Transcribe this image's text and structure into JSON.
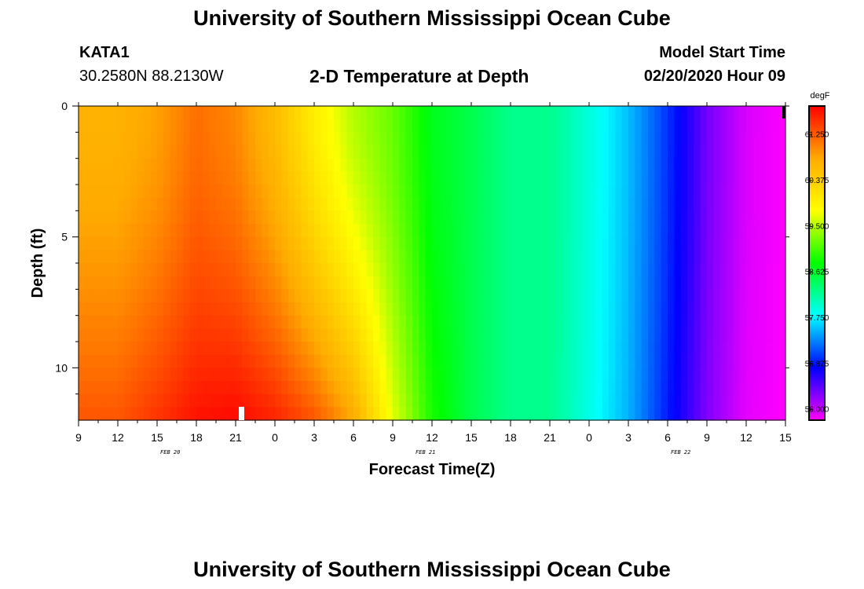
{
  "page": {
    "title_top": "University of Southern Mississippi Ocean Cube",
    "title_bottom": "University of Southern Mississippi Ocean Cube",
    "station_id": "KATA1",
    "station_coords": "30.2580N 88.2130W",
    "plot_title": "2-D Temperature at Depth",
    "model_start_label": "Model Start Time",
    "model_start_value": "02/20/2020 Hour 09"
  },
  "chart_data": {
    "type": "heatmap",
    "title": "2-D Temperature at Depth",
    "xlabel": "Forecast Time(Z)",
    "ylabel": "Depth (ft)",
    "x_tick_labels": [
      "9",
      "12",
      "15",
      "18",
      "21",
      "0",
      "3",
      "6",
      "9",
      "12",
      "15",
      "18",
      "21",
      "0",
      "3",
      "6",
      "9",
      "12",
      "15"
    ],
    "x_hour_range": [
      0,
      54
    ],
    "x_tick_step_hours": 3,
    "date_labels": [
      {
        "label": "FEB 20",
        "hour": 7
      },
      {
        "label": "FEB 21",
        "hour": 26.5
      },
      {
        "label": "FEB 22",
        "hour": 46
      }
    ],
    "y_tick_labels": [
      "0",
      "5",
      "10"
    ],
    "y_tick_values": [
      0,
      5,
      10
    ],
    "ylim": [
      0,
      12
    ],
    "y_inverted": true,
    "colorbar": {
      "unit": "degF",
      "tick_labels": [
        "61.250",
        "60.375",
        "59.500",
        "58.625",
        "57.750",
        "56.875",
        "56.000"
      ],
      "tick_values": [
        61.25,
        60.375,
        59.5,
        58.625,
        57.75,
        56.875,
        56.0
      ],
      "range": [
        55.8,
        61.8
      ],
      "colors": [
        "#ff00ff",
        "#0000ff",
        "#00ffff",
        "#00ff00",
        "#ffff00",
        "#ffaa00",
        "#ff0000"
      ]
    },
    "surface_temperature_by_hour": {
      "hours": [
        0,
        3,
        6,
        9,
        12,
        15,
        18,
        21,
        24,
        27,
        30,
        33,
        36,
        39,
        42,
        45,
        48,
        51,
        54
      ],
      "values_degF": [
        60.7,
        60.7,
        60.85,
        61.15,
        61.0,
        60.6,
        60.0,
        59.5,
        59.2,
        58.7,
        58.5,
        58.25,
        58.25,
        57.95,
        57.55,
        57.0,
        56.35,
        55.95,
        55.8
      ]
    },
    "bottom_temperature_by_hour": {
      "hours": [
        0,
        3,
        6,
        9,
        12,
        15,
        18,
        21,
        24,
        27,
        30,
        33,
        36,
        39,
        42,
        45,
        48,
        51,
        54
      ],
      "values_degF": [
        61.3,
        61.3,
        61.5,
        61.7,
        61.75,
        61.6,
        61.3,
        60.8,
        59.7,
        58.9,
        58.5,
        58.25,
        58.25,
        57.9,
        57.5,
        56.9,
        56.3,
        55.9,
        55.8
      ]
    }
  }
}
